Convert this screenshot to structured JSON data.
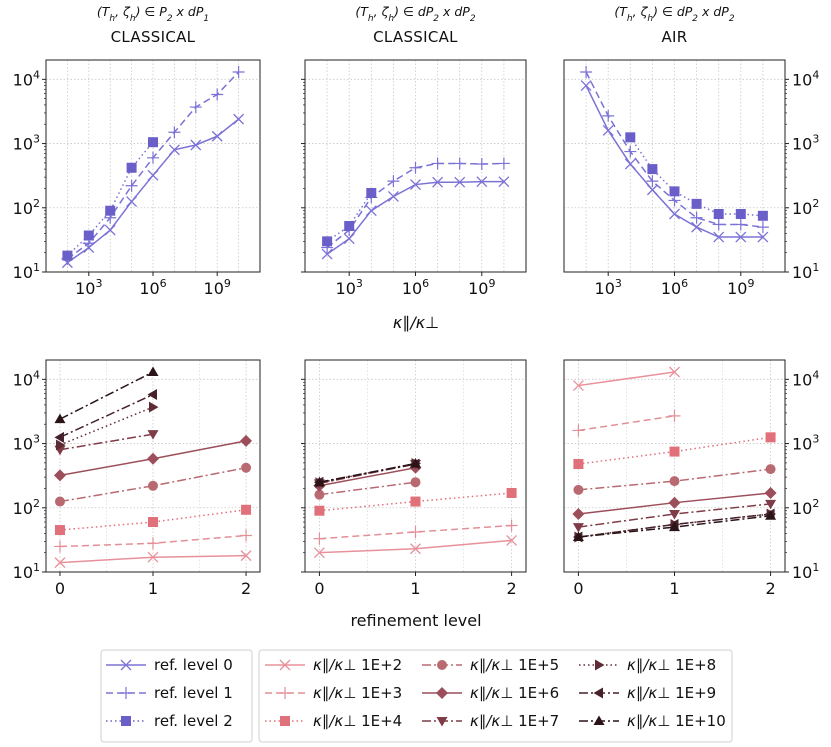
{
  "figure": {
    "x_label_top": "κ∥/κ⊥",
    "x_label_bottom": "refinement level",
    "colors": {
      "ref_series": "#7b72d6",
      "ref_marker": "#6a5fc9",
      "k1e2": "#e8919a",
      "k1e3": "#e38f96",
      "k1e4": "#e0707a",
      "k1e5": "#b86a70",
      "k1e6": "#9c4f5a",
      "k1e7": "#7f3c47",
      "k1e8": "#5e2a33",
      "k1e9": "#46202a",
      "k1e10": "#2a1418"
    }
  },
  "chart_data": [
    {
      "type": "line",
      "panel": "top-left",
      "subtitle": "(T_h, ζ_h) ∈ P₂ x dP₁",
      "subtitle_parts": [
        "(T",
        "h",
        ", ζ",
        "h",
        ") ∈ P",
        "2",
        " x dP",
        "1"
      ],
      "title": "CLASSICAL",
      "xscale": "log",
      "yscale": "log",
      "xlim": [
        10,
        100000000000.0
      ],
      "ylim": [
        10,
        20000
      ],
      "xticks": [
        "10³",
        "10⁶",
        "10⁹"
      ],
      "yticks": [
        "10¹",
        "10²",
        "10³",
        "10⁴"
      ],
      "x": [
        100,
        1000,
        10000,
        100000,
        1000000,
        10000000,
        100000000,
        1000000000,
        10000000000
      ],
      "series": [
        {
          "name": "ref. level 0",
          "values": [
            14,
            24,
            45,
            125,
            320,
            800,
            950,
            1300,
            2400
          ]
        },
        {
          "name": "ref. level 1",
          "values": [
            16,
            28,
            70,
            220,
            600,
            1500,
            3700,
            5800,
            13000
          ]
        },
        {
          "name": "ref. level 2",
          "values": [
            18,
            37,
            90,
            420,
            1050,
            null,
            null,
            null,
            null
          ]
        }
      ]
    },
    {
      "type": "line",
      "panel": "top-middle",
      "subtitle": "(T_h, ζ_h) ∈ dP₂ x dP₂",
      "subtitle_parts": [
        "(T",
        "h",
        ", ζ",
        "h",
        ") ∈ dP",
        "2",
        " x dP",
        "2"
      ],
      "title": "CLASSICAL",
      "xscale": "log",
      "yscale": "log",
      "xlim": [
        10,
        100000000000.0
      ],
      "ylim": [
        10,
        20000
      ],
      "xticks": [
        "10³",
        "10⁶",
        "10⁹"
      ],
      "yticks": [],
      "x": [
        100,
        1000,
        10000,
        100000,
        1000000,
        10000000,
        100000000,
        1000000000,
        10000000000
      ],
      "series": [
        {
          "name": "ref. level 0",
          "values": [
            19,
            33,
            90,
            150,
            230,
            250,
            250,
            255,
            255
          ]
        },
        {
          "name": "ref. level 1",
          "values": [
            24,
            45,
            145,
            260,
            420,
            490,
            490,
            480,
            490
          ]
        },
        {
          "name": "ref. level 2",
          "values": [
            30,
            52,
            170,
            null,
            null,
            null,
            null,
            null,
            null
          ]
        }
      ]
    },
    {
      "type": "line",
      "panel": "top-right",
      "subtitle": "(T_h, ζ_h) ∈ dP₂ x dP₂",
      "subtitle_parts": [
        "(T",
        "h",
        ", ζ",
        "h",
        ") ∈ dP",
        "2",
        " x dP",
        "2"
      ],
      "title": "AIR",
      "xscale": "log",
      "yscale": "log",
      "xlim": [
        10,
        100000000000.0
      ],
      "ylim": [
        10,
        20000
      ],
      "xticks": [
        "10³",
        "10⁶",
        "10⁹"
      ],
      "yticks": [
        "10¹",
        "10²",
        "10³",
        "10⁴"
      ],
      "ytick_side": "right",
      "x": [
        100,
        1000,
        10000,
        100000,
        1000000,
        10000000,
        100000000,
        1000000000,
        10000000000
      ],
      "series": [
        {
          "name": "ref. level 0",
          "values": [
            8000,
            1600,
            480,
            190,
            80,
            50,
            35,
            35,
            35
          ]
        },
        {
          "name": "ref. level 1",
          "values": [
            13000,
            2700,
            750,
            260,
            130,
            70,
            55,
            55,
            50
          ]
        },
        {
          "name": "ref. level 2",
          "values": [
            null,
            null,
            1250,
            400,
            180,
            115,
            80,
            80,
            75
          ]
        }
      ]
    },
    {
      "type": "line",
      "panel": "bottom-left",
      "xscale": "linear",
      "yscale": "log",
      "xlim": [
        -0.15,
        2.15
      ],
      "ylim": [
        10,
        20000
      ],
      "xticks": [
        "0",
        "1",
        "2"
      ],
      "yticks": [
        "10¹",
        "10²",
        "10³",
        "10⁴"
      ],
      "x": [
        0,
        1,
        2
      ],
      "series": [
        {
          "name": "κ∥/κ⊥ 1E+2",
          "values": [
            14,
            17,
            18
          ]
        },
        {
          "name": "κ∥/κ⊥ 1E+3",
          "values": [
            25,
            28,
            37
          ]
        },
        {
          "name": "κ∥/κ⊥ 1E+4",
          "values": [
            45,
            60,
            93
          ]
        },
        {
          "name": "κ∥/κ⊥ 1E+5",
          "values": [
            125,
            220,
            420
          ]
        },
        {
          "name": "κ∥/κ⊥ 1E+6",
          "values": [
            320,
            580,
            1100
          ]
        },
        {
          "name": "κ∥/κ⊥ 1E+7",
          "values": [
            800,
            1400,
            null
          ]
        },
        {
          "name": "κ∥/κ⊥ 1E+8",
          "values": [
            950,
            3700,
            null
          ]
        },
        {
          "name": "κ∥/κ⊥ 1E+9",
          "values": [
            1250,
            5800,
            null
          ]
        },
        {
          "name": "κ∥/κ⊥ 1E+10",
          "values": [
            2400,
            13000,
            null
          ]
        }
      ]
    },
    {
      "type": "line",
      "panel": "bottom-middle",
      "xscale": "linear",
      "yscale": "log",
      "xlim": [
        -0.15,
        2.15
      ],
      "ylim": [
        10,
        20000
      ],
      "xticks": [
        "0",
        "1",
        "2"
      ],
      "yticks": [],
      "x": [
        0,
        1,
        2
      ],
      "series": [
        {
          "name": "κ∥/κ⊥ 1E+2",
          "values": [
            20,
            23,
            31
          ]
        },
        {
          "name": "κ∥/κ⊥ 1E+3",
          "values": [
            33,
            42,
            53
          ]
        },
        {
          "name": "κ∥/κ⊥ 1E+4",
          "values": [
            90,
            125,
            170
          ]
        },
        {
          "name": "κ∥/κ⊥ 1E+5",
          "values": [
            160,
            250,
            null
          ]
        },
        {
          "name": "κ∥/κ⊥ 1E+6",
          "values": [
            220,
            420,
            null
          ]
        },
        {
          "name": "κ∥/κ⊥ 1E+7",
          "values": [
            240,
            480,
            null
          ]
        },
        {
          "name": "κ∥/κ⊥ 1E+8",
          "values": [
            245,
            490,
            null
          ]
        },
        {
          "name": "κ∥/κ⊥ 1E+9",
          "values": [
            250,
            480,
            null
          ]
        },
        {
          "name": "κ∥/κ⊥ 1E+10",
          "values": [
            250,
            490,
            null
          ]
        }
      ]
    },
    {
      "type": "line",
      "panel": "bottom-right",
      "xscale": "linear",
      "yscale": "log",
      "xlim": [
        -0.15,
        2.15
      ],
      "ylim": [
        10,
        20000
      ],
      "xticks": [
        "0",
        "1",
        "2"
      ],
      "yticks": [
        "10¹",
        "10²",
        "10³",
        "10⁴"
      ],
      "ytick_side": "right",
      "x": [
        0,
        1,
        2
      ],
      "series": [
        {
          "name": "κ∥/κ⊥ 1E+2",
          "values": [
            8000,
            13000,
            null
          ]
        },
        {
          "name": "κ∥/κ⊥ 1E+3",
          "values": [
            1600,
            2700,
            null
          ]
        },
        {
          "name": "κ∥/κ⊥ 1E+4",
          "values": [
            480,
            750,
            1250
          ]
        },
        {
          "name": "κ∥/κ⊥ 1E+5",
          "values": [
            190,
            260,
            400
          ]
        },
        {
          "name": "κ∥/κ⊥ 1E+6",
          "values": [
            80,
            120,
            170
          ]
        },
        {
          "name": "κ∥/κ⊥ 1E+7",
          "values": [
            50,
            80,
            115
          ]
        },
        {
          "name": "κ∥/κ⊥ 1E+8",
          "values": [
            35,
            55,
            80
          ]
        },
        {
          "name": "κ∥/κ⊥ 1E+9",
          "values": [
            35,
            55,
            80
          ]
        },
        {
          "name": "κ∥/κ⊥ 1E+10",
          "values": [
            35,
            50,
            75
          ]
        }
      ]
    }
  ],
  "legend": {
    "ref": [
      "ref. level 0",
      "ref. level 1",
      "ref. level 2"
    ],
    "kappa_prefix": "κ∥/κ⊥",
    "kappa": [
      "1E+2",
      "1E+3",
      "1E+4",
      "1E+5",
      "1E+6",
      "1E+7",
      "1E+8",
      "1E+9",
      "1E+10"
    ]
  }
}
